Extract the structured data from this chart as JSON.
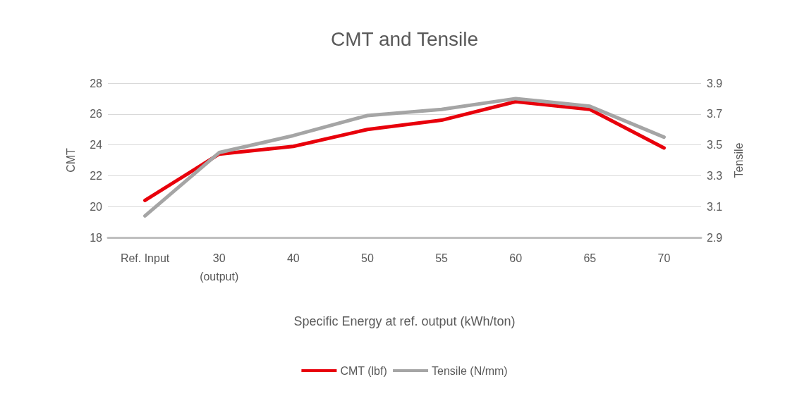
{
  "chart_data": {
    "type": "line",
    "title": "CMT and Tensile",
    "xlabel": "Specific Energy at ref. output (kWh/ton)",
    "ylabel": "CMT",
    "y2label": "Tensile",
    "categories": [
      "Ref. Input",
      "30\n(output)",
      "40",
      "50",
      "55",
      "60",
      "65",
      "70"
    ],
    "series": [
      {
        "name": "CMT (lbf)",
        "color": "#e8000b",
        "values": [
          20.4,
          23.4,
          23.9,
          25.0,
          25.6,
          26.8,
          26.3,
          23.8
        ]
      },
      {
        "name": "Tensile (N/mm)",
        "color": "#a5a5a5",
        "axis": "y2",
        "values": [
          3.04,
          3.45,
          3.56,
          3.69,
          3.73,
          3.8,
          3.75,
          3.55
        ]
      }
    ],
    "ylim": [
      18,
      28
    ],
    "yticks": [
      18,
      20,
      22,
      24,
      26,
      28
    ],
    "y2lim": [
      2.9,
      3.9
    ],
    "y2ticks": [
      2.9,
      3.1,
      3.3,
      3.5,
      3.7,
      3.9
    ],
    "grid": "y",
    "legend": "bottom",
    "marker": "none",
    "line_style": "solid"
  }
}
